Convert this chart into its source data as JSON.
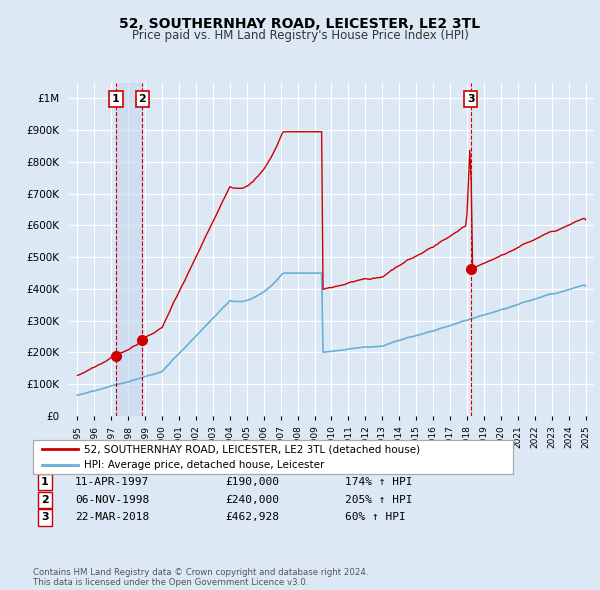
{
  "title": "52, SOUTHERNHAY ROAD, LEICESTER, LE2 3TL",
  "subtitle": "Price paid vs. HM Land Registry's House Price Index (HPI)",
  "bg_color": "#dce9f5",
  "plot_bg_color": "#dce9f5",
  "grid_color": "#ffffff",
  "hpi_color": "#6baed6",
  "price_color": "#cc0000",
  "sale_marker_color": "#cc0000",
  "sale_vline_color": "#cc0000",
  "sale_shade_color": "#c6d8ee",
  "sales": [
    {
      "date_num": 1997.27,
      "price": 190000,
      "label": "1"
    },
    {
      "date_num": 1998.84,
      "price": 240000,
      "label": "2"
    },
    {
      "date_num": 2018.22,
      "price": 462928,
      "label": "3"
    }
  ],
  "table_rows": [
    {
      "num": "1",
      "date": "11-APR-1997",
      "price": "£190,000",
      "hpi": "174% ↑ HPI"
    },
    {
      "num": "2",
      "date": "06-NOV-1998",
      "price": "£240,000",
      "hpi": "205% ↑ HPI"
    },
    {
      "num": "3",
      "date": "22-MAR-2018",
      "price": "£462,928",
      "hpi": "60% ↑ HPI"
    }
  ],
  "footer": "Contains HM Land Registry data © Crown copyright and database right 2024.\nThis data is licensed under the Open Government Licence v3.0.",
  "legend_hpi_label": "HPI: Average price, detached house, Leicester",
  "legend_price_label": "52, SOUTHERNHAY ROAD, LEICESTER, LE2 3TL (detached house)",
  "ylim": [
    0,
    1050000
  ],
  "xlim": [
    1994.5,
    2025.5
  ]
}
